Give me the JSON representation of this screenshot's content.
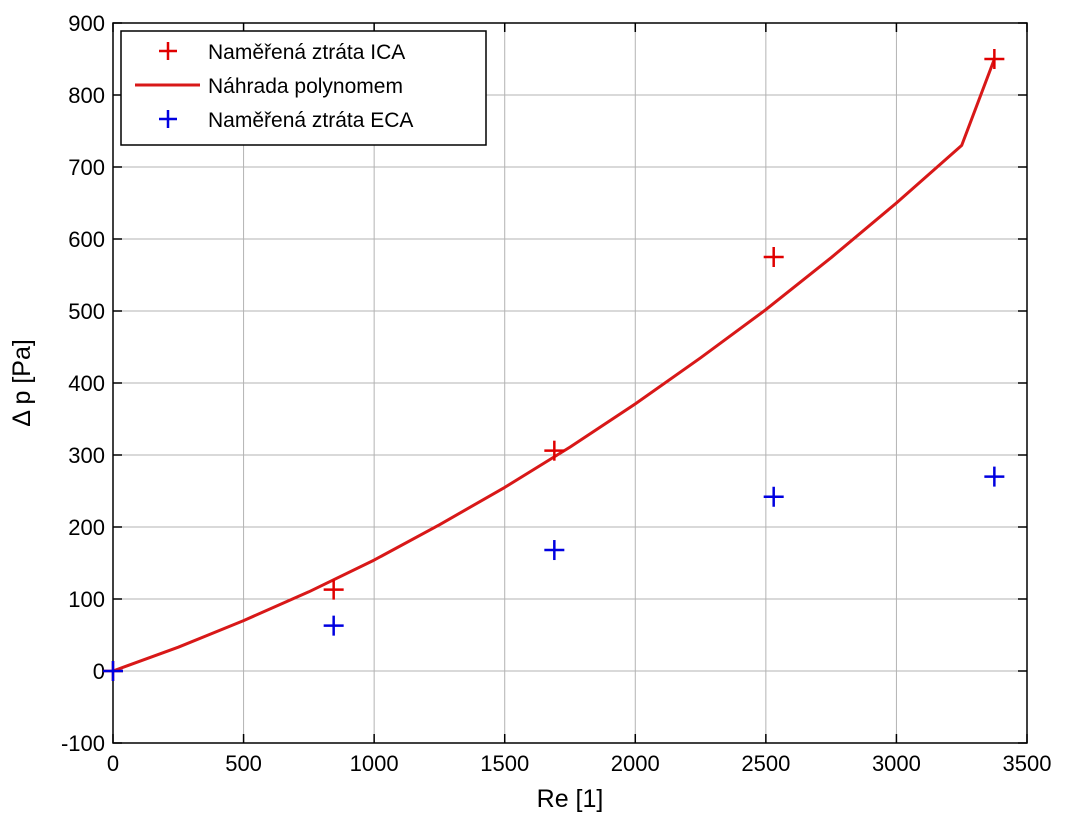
{
  "chart_data": {
    "type": "scatter",
    "title": "",
    "xlabel": "Re [1]",
    "ylabel": "Δ p [Pa]",
    "xlim": [
      0,
      3500
    ],
    "ylim": [
      -100,
      900
    ],
    "xticks": [
      0,
      500,
      1000,
      1500,
      2000,
      2500,
      3000,
      3500
    ],
    "yticks": [
      -100,
      0,
      100,
      200,
      300,
      400,
      500,
      600,
      700,
      800,
      900
    ],
    "grid": true,
    "legend_position": "top-left",
    "series": [
      {
        "name": "Naměřená ztráta ICA",
        "type": "scatter",
        "marker": "plus",
        "color": "#e00000",
        "x": [
          0,
          845,
          1690,
          2530,
          3375
        ],
        "y": [
          0,
          113,
          306,
          575,
          850
        ]
      },
      {
        "name": "Náhrada polynomem",
        "type": "line",
        "color": "#d81818",
        "x": [
          0,
          250,
          500,
          750,
          1000,
          1250,
          1500,
          1750,
          2000,
          2250,
          2500,
          2750,
          3000,
          3250,
          3375
        ],
        "y": [
          0,
          33,
          70,
          110,
          154,
          203,
          255,
          311,
          371,
          435,
          502,
          574,
          650,
          730,
          850
        ]
      },
      {
        "name": "Naměřená ztráta ECA",
        "type": "scatter",
        "marker": "plus",
        "color": "#0000e0",
        "x": [
          0,
          845,
          1690,
          2530,
          3375
        ],
        "y": [
          0,
          63,
          168,
          242,
          270
        ]
      }
    ]
  }
}
